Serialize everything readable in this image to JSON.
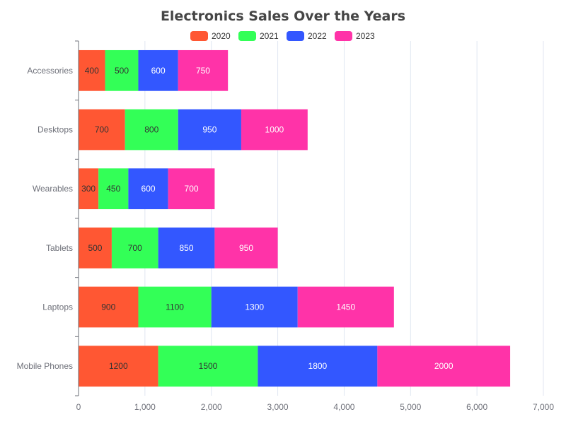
{
  "chart_data": {
    "type": "bar",
    "orientation": "horizontal",
    "stacked": true,
    "title": "Electronics Sales Over the Years",
    "categories": [
      "Mobile Phones",
      "Laptops",
      "Tablets",
      "Wearables",
      "Desktops",
      "Accessories"
    ],
    "series": [
      {
        "name": "2020",
        "color": "#ff5733",
        "label_color": "#333333",
        "values": [
          1200,
          900,
          500,
          300,
          700,
          400
        ]
      },
      {
        "name": "2021",
        "color": "#33ff57",
        "label_color": "#333333",
        "values": [
          1500,
          1100,
          700,
          450,
          800,
          500
        ]
      },
      {
        "name": "2022",
        "color": "#3357ff",
        "label_color": "#ffffff",
        "values": [
          1800,
          1300,
          850,
          600,
          950,
          600
        ]
      },
      {
        "name": "2023",
        "color": "#ff33a8",
        "label_color": "#ffffff",
        "values": [
          2000,
          1450,
          950,
          700,
          1000,
          750
        ]
      }
    ],
    "xlim": [
      0,
      7000
    ],
    "x_ticks": [
      0,
      1000,
      2000,
      3000,
      4000,
      5000,
      6000,
      7000
    ],
    "x_tick_labels": [
      "0",
      "1,000",
      "2,000",
      "3,000",
      "4,000",
      "5,000",
      "6,000",
      "7,000"
    ],
    "xlabel": "",
    "ylabel": "",
    "grid": "vertical",
    "legend_position": "top-center",
    "data_labels": true
  }
}
